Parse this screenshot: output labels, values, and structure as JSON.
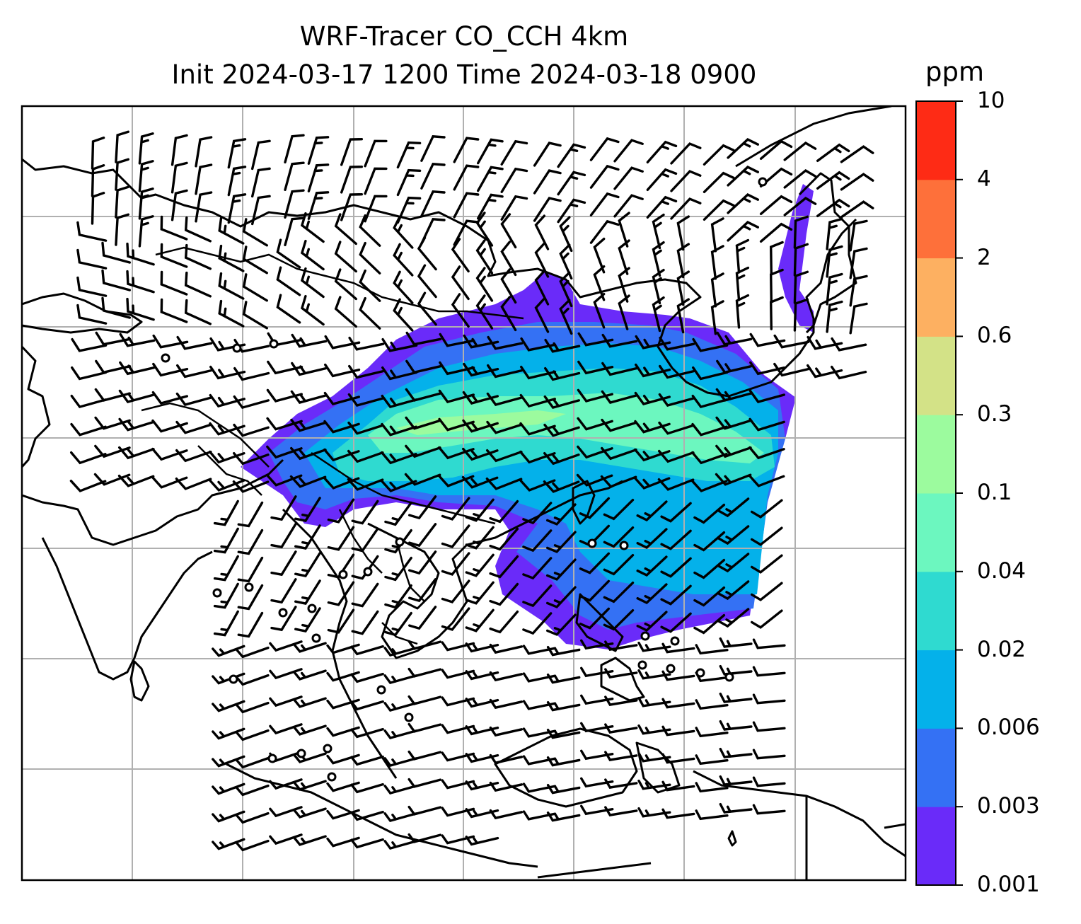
{
  "figure": {
    "title_line1": "WRF-Tracer CO_CCH 4km",
    "title_line2": "Init 2024-03-17 1200 Time 2024-03-18 0900"
  },
  "colorbar": {
    "unit": "ppm",
    "levels": [
      "0.001",
      "0.003",
      "0.006",
      "0.02",
      "0.04",
      "0.1",
      "0.3",
      "0.6",
      "2",
      "4",
      "10"
    ],
    "colors": [
      "#6a2bf9",
      "#3471f4",
      "#04b1ea",
      "#2fdad0",
      "#6cf7bf",
      "#9cfb9e",
      "#d3e287",
      "#fdb061",
      "#fe703a",
      "#fe2b15"
    ]
  },
  "map": {
    "field": "CO_CCH tracer concentration",
    "overlays": [
      "coastlines",
      "country-borders",
      "wind-barbs",
      "gridlines"
    ],
    "icons": {
      "wind": "wind-barb-icon",
      "calm": "calm-circle-icon"
    }
  }
}
